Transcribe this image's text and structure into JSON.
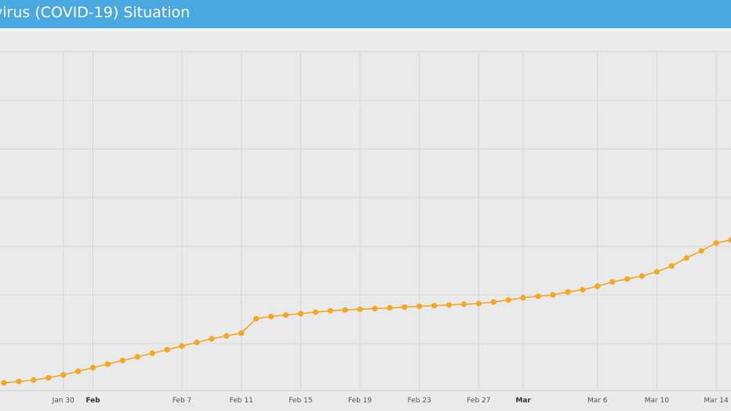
{
  "header": {
    "title": "virus (COVID-19) Situation",
    "background": "#4aa8e0"
  },
  "chart_data": {
    "type": "line",
    "title": "",
    "xlabel": "",
    "ylabel": "",
    "grid": true,
    "x_ticks": [
      {
        "label": "Jan 30",
        "date": "2020-01-30",
        "bold": false
      },
      {
        "label": "Feb",
        "date": "2020-02-01",
        "bold": true
      },
      {
        "label": "Feb 7",
        "date": "2020-02-07",
        "bold": false
      },
      {
        "label": "Feb 11",
        "date": "2020-02-11",
        "bold": false
      },
      {
        "label": "Feb 15",
        "date": "2020-02-15",
        "bold": false
      },
      {
        "label": "Feb 19",
        "date": "2020-02-19",
        "bold": false
      },
      {
        "label": "Feb 23",
        "date": "2020-02-23",
        "bold": false
      },
      {
        "label": "Feb 27",
        "date": "2020-02-27",
        "bold": false
      },
      {
        "label": "Mar",
        "date": "2020-03-01",
        "bold": true
      },
      {
        "label": "Mar 6",
        "date": "2020-03-06",
        "bold": false
      },
      {
        "label": "Mar 10",
        "date": "2020-03-10",
        "bold": false
      },
      {
        "label": "Mar 14",
        "date": "2020-03-14",
        "bold": false
      }
    ],
    "x_range": [
      "2020-01-26",
      "2020-03-15"
    ],
    "y_range": [
      0,
      1
    ],
    "series": [
      {
        "color": "#f5a623",
        "x": [
          "2020-01-26",
          "2020-01-27",
          "2020-01-28",
          "2020-01-29",
          "2020-01-30",
          "2020-01-31",
          "2020-02-01",
          "2020-02-02",
          "2020-02-03",
          "2020-02-04",
          "2020-02-05",
          "2020-02-06",
          "2020-02-07",
          "2020-02-08",
          "2020-02-09",
          "2020-02-10",
          "2020-02-11",
          "2020-02-12",
          "2020-02-13",
          "2020-02-14",
          "2020-02-15",
          "2020-02-16",
          "2020-02-17",
          "2020-02-18",
          "2020-02-19",
          "2020-02-20",
          "2020-02-21",
          "2020-02-22",
          "2020-02-23",
          "2020-02-24",
          "2020-02-25",
          "2020-02-26",
          "2020-02-27",
          "2020-02-28",
          "2020-02-29",
          "2020-03-01",
          "2020-03-02",
          "2020-03-03",
          "2020-03-04",
          "2020-03-05",
          "2020-03-06",
          "2020-03-07",
          "2020-03-08",
          "2020-03-09",
          "2020-03-10",
          "2020-03-11",
          "2020-03-12",
          "2020-03-13",
          "2020-03-14",
          "2020-03-15"
        ],
        "values": [
          0.01,
          0.02,
          0.03,
          0.045,
          0.065,
          0.09,
          0.115,
          0.14,
          0.165,
          0.19,
          0.215,
          0.24,
          0.265,
          0.29,
          0.315,
          0.335,
          0.355,
          0.455,
          0.47,
          0.48,
          0.49,
          0.5,
          0.51,
          0.515,
          0.52,
          0.525,
          0.53,
          0.535,
          0.54,
          0.545,
          0.55,
          0.555,
          0.56,
          0.57,
          0.585,
          0.6,
          0.61,
          0.62,
          0.64,
          0.655,
          0.68,
          0.71,
          0.73,
          0.75,
          0.78,
          0.82,
          0.875,
          0.925,
          0.98,
          1.0
        ]
      }
    ]
  }
}
